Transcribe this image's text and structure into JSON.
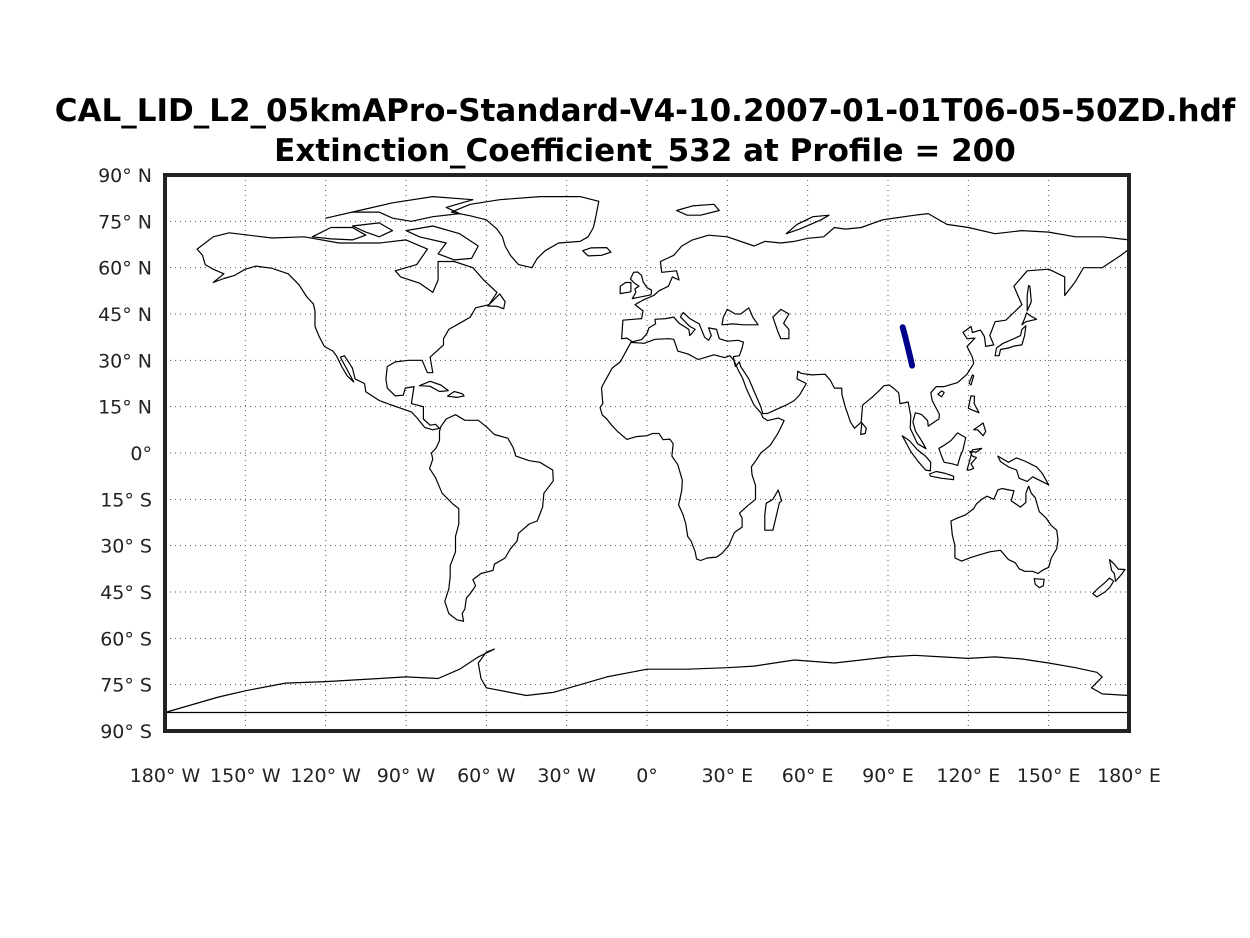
{
  "title": {
    "line1": "CAL_LID_L2_05kmAPro-Standard-V4-10.2007-01-01T06-05-50ZD.hdf",
    "line2": "Extinction_Coefficient_532 at Profile = 200"
  },
  "map": {
    "projection": "equirectangular",
    "extent": {
      "lon": [
        -180,
        180
      ],
      "lat": [
        -90,
        90
      ]
    },
    "grid": "dotted",
    "lat_ticks": [
      {
        "value": 90,
        "label": "90° N"
      },
      {
        "value": 75,
        "label": "75° N"
      },
      {
        "value": 60,
        "label": "60° N"
      },
      {
        "value": 45,
        "label": "45° N"
      },
      {
        "value": 30,
        "label": "30° N"
      },
      {
        "value": 15,
        "label": "15° N"
      },
      {
        "value": 0,
        "label": "0°"
      },
      {
        "value": -15,
        "label": "15° S"
      },
      {
        "value": -30,
        "label": "30° S"
      },
      {
        "value": -45,
        "label": "45° S"
      },
      {
        "value": -60,
        "label": "60° S"
      },
      {
        "value": -75,
        "label": "75° S"
      },
      {
        "value": -90,
        "label": "90° S"
      }
    ],
    "lon_ticks": [
      {
        "value": -180,
        "label": "180° W"
      },
      {
        "value": -150,
        "label": "150° W"
      },
      {
        "value": -120,
        "label": "120° W"
      },
      {
        "value": -90,
        "label": "90° W"
      },
      {
        "value": -60,
        "label": "60° W"
      },
      {
        "value": -30,
        "label": "30° W"
      },
      {
        "value": 0,
        "label": "0°"
      },
      {
        "value": 30,
        "label": "30° E"
      },
      {
        "value": 60,
        "label": "60° E"
      },
      {
        "value": 90,
        "label": "90° E"
      },
      {
        "value": 120,
        "label": "120° E"
      },
      {
        "value": 150,
        "label": "150° E"
      },
      {
        "value": 180,
        "label": "180° E"
      }
    ],
    "track": {
      "color": "#00008b",
      "points": [
        [
          95.5,
          40.7
        ],
        [
          96.4,
          37.8
        ],
        [
          97.3,
          34.6
        ],
        [
          98.2,
          31.3
        ],
        [
          99.0,
          28.3
        ]
      ]
    },
    "coastline_color": "#000000"
  }
}
